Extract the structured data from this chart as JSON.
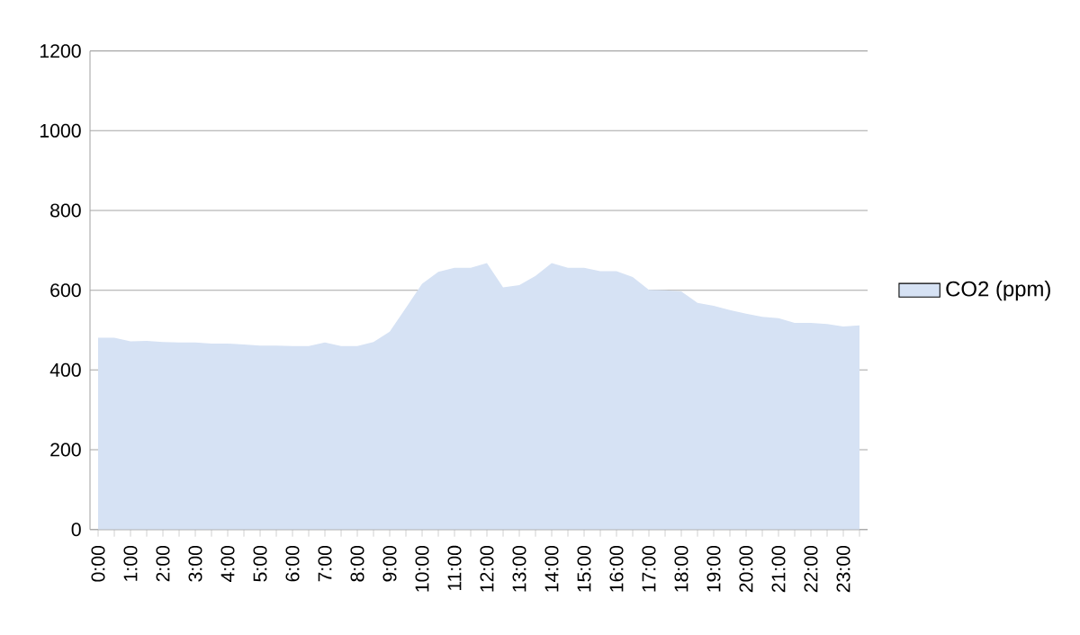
{
  "chart_data": {
    "type": "area",
    "categories": [
      "0:00",
      null,
      "1:00",
      null,
      "2:00",
      null,
      "3:00",
      null,
      "4:00",
      null,
      "5:00",
      null,
      "6:00",
      null,
      "7:00",
      null,
      "8:00",
      null,
      "9:00",
      null,
      "10:00",
      null,
      "11:00",
      null,
      "12:00",
      null,
      "13:00",
      null,
      "14:00",
      null,
      "15:00",
      null,
      "16:00",
      null,
      "17:00",
      null,
      "18:00",
      null,
      "19:00",
      null,
      "20:00",
      null,
      "21:00",
      null,
      "22:00",
      null,
      "23:00",
      null
    ],
    "series": [
      {
        "name": "CO2 (ppm)",
        "color": "#d6e2f4",
        "values": [
          481,
          481,
          472,
          473,
          470,
          469,
          469,
          466,
          466,
          464,
          461,
          461,
          460,
          460,
          469,
          460,
          460,
          470,
          496,
          556,
          616,
          646,
          656,
          656,
          668,
          607,
          613,
          636,
          668,
          656,
          656,
          648,
          648,
          633,
          601,
          600,
          597,
          568,
          561,
          550,
          541,
          533,
          530,
          518,
          518,
          515,
          509,
          512
        ]
      }
    ],
    "ylim": [
      0,
      1200
    ],
    "yticks": [
      0,
      200,
      400,
      600,
      800,
      1000,
      1200
    ],
    "grid": "y",
    "legend": "right"
  }
}
